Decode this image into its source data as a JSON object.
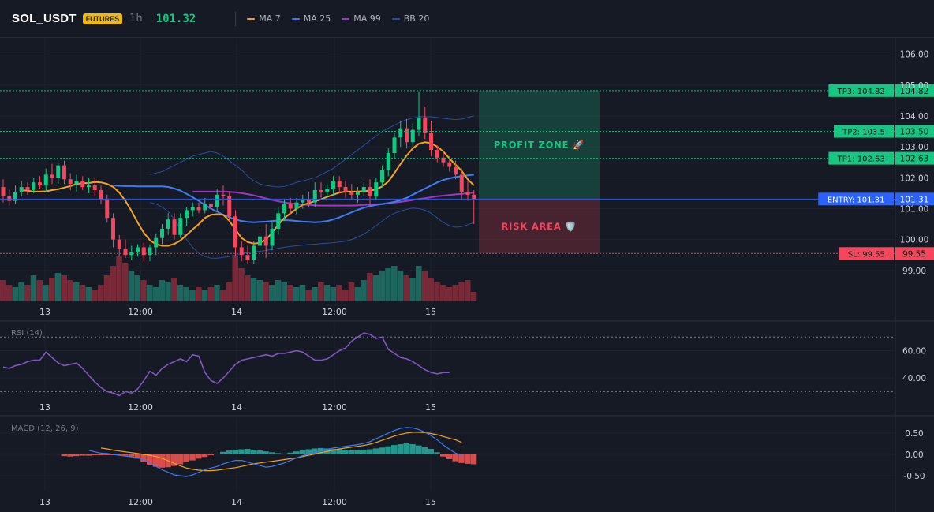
{
  "header": {
    "symbol": "SOL_USDT",
    "badge": "FUTURES",
    "timeframe": "1h",
    "price": "101.32",
    "legend": [
      {
        "name": "MA 7",
        "color": "#f7a21b"
      },
      {
        "name": "MA 25",
        "color": "#3d7bf5"
      },
      {
        "name": "MA 99",
        "color": "#9c36c4"
      },
      {
        "name": "BB 20",
        "color": "#2b4c9e"
      }
    ]
  },
  "chart_data": [
    {
      "type": "candlestick",
      "y_ticks": [
        "106.00",
        "105.00",
        "104.00",
        "103.00",
        "102.00",
        "101.00",
        "100.00",
        "99.00"
      ],
      "x_ticks": [
        "13",
        "12:00",
        "14",
        "12:00",
        "15"
      ],
      "ylim": [
        98.0,
        106.5
      ],
      "levels": [
        {
          "label": "TP3: 104.82",
          "value": "104.82",
          "color": "#16c784",
          "price": 104.82
        },
        {
          "label": "TP2: 103.5",
          "value": "103.50",
          "color": "#16c784",
          "price": 103.5
        },
        {
          "label": "TP1: 102.63",
          "value": "102.63",
          "color": "#16c784",
          "price": 102.63
        },
        {
          "label": "ENTRY: 101.31",
          "value": "101.31",
          "color": "#2962ff",
          "price": 101.31
        },
        {
          "label": "SL: 99.55",
          "value": "99.55",
          "color": "#f6465d",
          "price": 99.55
        }
      ],
      "zones": [
        {
          "label": "PROFIT ZONE 🚀",
          "from": 101.31,
          "to": 104.82,
          "color": "#16c784"
        },
        {
          "label": "RISK AREA 🛡️",
          "from": 99.55,
          "to": 101.31,
          "color": "#f6465d"
        }
      ],
      "candles": [
        [
          101.7,
          101.95,
          101.2,
          101.4
        ],
        [
          101.4,
          101.6,
          101.1,
          101.25
        ],
        [
          101.25,
          101.75,
          101.15,
          101.55
        ],
        [
          101.55,
          101.9,
          101.4,
          101.7
        ],
        [
          101.7,
          101.85,
          101.45,
          101.6
        ],
        [
          101.6,
          102.0,
          101.5,
          101.85
        ],
        [
          101.85,
          102.05,
          101.65,
          101.75
        ],
        [
          101.75,
          102.3,
          101.55,
          102.1
        ],
        [
          102.1,
          102.45,
          101.8,
          102.0
        ],
        [
          102.0,
          102.5,
          101.8,
          102.4
        ],
        [
          102.4,
          102.55,
          101.8,
          101.95
        ],
        [
          101.95,
          102.15,
          101.6,
          101.8
        ],
        [
          101.8,
          102.1,
          101.55,
          101.9
        ],
        [
          101.9,
          102.05,
          101.6,
          101.7
        ],
        [
          101.7,
          102.0,
          101.5,
          101.75
        ],
        [
          101.75,
          102.0,
          101.4,
          101.6
        ],
        [
          101.6,
          101.75,
          101.15,
          101.3
        ],
        [
          101.3,
          101.45,
          100.55,
          100.7
        ],
        [
          100.7,
          100.85,
          99.75,
          100.0
        ],
        [
          100.0,
          100.15,
          99.45,
          99.7
        ],
        [
          99.7,
          100.0,
          99.4,
          99.5
        ],
        [
          99.5,
          99.8,
          99.35,
          99.6
        ],
        [
          99.6,
          99.85,
          99.45,
          99.75
        ],
        [
          99.75,
          99.9,
          99.3,
          99.5
        ],
        [
          99.5,
          99.85,
          99.3,
          99.75
        ],
        [
          99.75,
          100.2,
          99.5,
          100.05
        ],
        [
          100.05,
          100.5,
          99.85,
          100.35
        ],
        [
          100.35,
          100.85,
          100.15,
          100.65
        ],
        [
          100.65,
          100.85,
          100.0,
          100.15
        ],
        [
          100.15,
          100.85,
          100.05,
          100.7
        ],
        [
          100.7,
          101.05,
          100.45,
          100.95
        ],
        [
          100.95,
          101.2,
          100.75,
          101.05
        ],
        [
          101.05,
          101.2,
          100.85,
          100.95
        ],
        [
          100.95,
          101.35,
          100.85,
          101.15
        ],
        [
          101.15,
          101.4,
          100.95,
          101.05
        ],
        [
          101.05,
          101.65,
          100.9,
          101.45
        ],
        [
          101.45,
          101.75,
          101.1,
          101.4
        ],
        [
          101.4,
          101.55,
          100.6,
          100.75
        ],
        [
          100.75,
          100.95,
          99.45,
          99.75
        ],
        [
          99.75,
          99.95,
          99.3,
          99.5
        ],
        [
          99.5,
          99.8,
          99.2,
          99.35
        ],
        [
          99.35,
          99.95,
          99.2,
          99.8
        ],
        [
          99.8,
          100.3,
          99.6,
          100.1
        ],
        [
          100.1,
          100.5,
          99.4,
          99.8
        ],
        [
          99.8,
          100.55,
          99.65,
          100.35
        ],
        [
          100.35,
          101.05,
          100.15,
          100.85
        ],
        [
          100.85,
          101.3,
          100.6,
          101.15
        ],
        [
          101.15,
          101.35,
          100.85,
          101.0
        ],
        [
          101.0,
          101.35,
          100.8,
          101.2
        ],
        [
          101.2,
          101.45,
          101.0,
          101.3
        ],
        [
          101.3,
          101.55,
          101.05,
          101.2
        ],
        [
          101.2,
          101.85,
          101.05,
          101.6
        ],
        [
          101.6,
          101.85,
          101.35,
          101.55
        ],
        [
          101.55,
          101.8,
          101.4,
          101.65
        ],
        [
          101.65,
          102.05,
          101.45,
          101.9
        ],
        [
          101.9,
          102.05,
          101.5,
          101.7
        ],
        [
          101.7,
          101.9,
          101.35,
          101.55
        ],
        [
          101.55,
          101.8,
          101.3,
          101.45
        ],
        [
          101.45,
          101.7,
          101.2,
          101.55
        ],
        [
          101.55,
          101.85,
          101.4,
          101.7
        ],
        [
          101.7,
          101.95,
          101.1,
          101.4
        ],
        [
          101.4,
          102.0,
          101.3,
          101.85
        ],
        [
          101.85,
          102.4,
          101.7,
          102.25
        ],
        [
          102.25,
          102.95,
          102.05,
          102.8
        ],
        [
          102.8,
          103.45,
          102.6,
          103.3
        ],
        [
          103.3,
          103.85,
          103.0,
          103.6
        ],
        [
          103.6,
          103.9,
          102.95,
          103.15
        ],
        [
          103.15,
          103.75,
          103.0,
          103.55
        ],
        [
          103.55,
          104.8,
          103.35,
          103.95
        ],
        [
          103.95,
          104.3,
          103.25,
          103.45
        ],
        [
          103.45,
          103.85,
          102.7,
          102.9
        ],
        [
          102.9,
          103.05,
          102.5,
          102.65
        ],
        [
          102.65,
          102.85,
          102.35,
          102.5
        ],
        [
          102.5,
          102.7,
          102.2,
          102.35
        ],
        [
          102.35,
          102.55,
          101.95,
          102.1
        ],
        [
          102.1,
          102.3,
          101.3,
          101.55
        ],
        [
          101.55,
          101.9,
          101.25,
          101.45
        ],
        [
          101.45,
          101.6,
          100.5,
          101.32
        ]
      ],
      "ma7": [
        101.6,
        101.58,
        101.55,
        101.55,
        101.56,
        101.6,
        101.63,
        101.68,
        101.73,
        101.8,
        101.82,
        101.83,
        101.86,
        101.85,
        101.8,
        101.7,
        101.52,
        101.25,
        100.92,
        100.55,
        100.22,
        99.98,
        99.85,
        99.8,
        99.8,
        99.86,
        99.97,
        100.15,
        100.33,
        100.5,
        100.7,
        100.8,
        100.82,
        100.8,
        100.6,
        100.32,
        100.05,
        99.92,
        99.87,
        99.9,
        100.0,
        100.22,
        100.48,
        100.7,
        100.85,
        101.0,
        101.12,
        101.18,
        101.24,
        101.3,
        101.38,
        101.45,
        101.52,
        101.55,
        101.55,
        101.55,
        101.57,
        101.58,
        101.62,
        101.72,
        101.88,
        102.15,
        102.45,
        102.72,
        102.95,
        103.1,
        103.15,
        103.12,
        103.0,
        102.85,
        102.62,
        102.42,
        102.22,
        101.95,
        101.75
      ],
      "ma25": [
        101.75,
        101.74,
        101.73,
        101.73,
        101.72,
        101.72,
        101.72,
        101.72,
        101.72,
        101.7,
        101.65,
        101.58,
        101.48,
        101.37,
        101.25,
        101.12,
        101.0,
        100.9,
        100.8,
        100.72,
        100.65,
        100.6,
        100.57,
        100.56,
        100.57,
        100.58,
        100.6,
        100.62,
        100.63,
        100.62,
        100.6,
        100.58,
        100.57,
        100.56,
        100.57,
        100.6,
        100.65,
        100.72,
        100.8,
        100.88,
        100.96,
        101.03,
        101.08,
        101.12,
        101.15,
        101.18,
        101.22,
        101.28,
        101.35,
        101.45,
        101.55,
        101.65,
        101.75,
        101.85,
        101.93,
        101.98,
        102.02,
        102.05,
        102.08,
        102.1
      ],
      "ma99": [
        101.55,
        101.55,
        101.55,
        101.55,
        101.55,
        101.55,
        101.54,
        101.53,
        101.5,
        101.47,
        101.43,
        101.38,
        101.33,
        101.28,
        101.24,
        101.2,
        101.17,
        101.15,
        101.13,
        101.12,
        101.11,
        101.1,
        101.1,
        101.1,
        101.1,
        101.1,
        101.1,
        101.11,
        101.12,
        101.13,
        101.14,
        101.15,
        101.17,
        101.2,
        101.22,
        101.25,
        101.28,
        101.31,
        101.34,
        101.37,
        101.4,
        101.42,
        101.44,
        101.46,
        101.48,
        101.5,
        101.52
      ],
      "bb_upper": [
        102.1,
        102.15,
        102.2,
        102.3,
        102.4,
        102.5,
        102.6,
        102.7,
        102.75,
        102.8,
        102.85,
        102.8,
        102.7,
        102.55,
        102.4,
        102.25,
        102.05,
        101.9,
        101.8,
        101.75,
        101.72,
        101.7,
        101.72,
        101.78,
        101.85,
        101.9,
        101.95,
        102.0,
        102.1,
        102.2,
        102.3,
        102.45,
        102.6,
        102.75,
        102.9,
        103.05,
        103.2,
        103.35,
        103.5,
        103.6,
        103.7,
        103.8,
        103.88,
        103.93,
        103.97,
        103.98,
        103.97,
        103.95,
        103.92,
        103.9,
        103.88,
        103.9,
        103.95,
        104.0
      ],
      "bb_lower": [
        101.2,
        101.15,
        101.05,
        100.9,
        100.65,
        100.35,
        100.0,
        99.75,
        99.55,
        99.45,
        99.4,
        99.4,
        99.42,
        99.45,
        99.5,
        99.55,
        99.58,
        99.6,
        99.62,
        99.65,
        99.68,
        99.72,
        99.75,
        99.78,
        99.8,
        99.82,
        99.84,
        99.85,
        99.87,
        99.88,
        99.9,
        99.92,
        99.95,
        100.0,
        100.08,
        100.18,
        100.3,
        100.45,
        100.6,
        100.75,
        100.85,
        100.92,
        100.98,
        101.02,
        101.0,
        100.95,
        100.85,
        100.7,
        100.55,
        100.45,
        100.4,
        100.42,
        100.48,
        100.55
      ],
      "volume": [
        0.45,
        0.35,
        0.3,
        0.4,
        0.35,
        0.55,
        0.45,
        0.35,
        0.5,
        0.6,
        0.55,
        0.45,
        0.4,
        0.35,
        0.3,
        0.25,
        0.35,
        0.55,
        0.75,
        0.95,
        0.8,
        0.65,
        0.55,
        0.45,
        0.35,
        0.3,
        0.45,
        0.4,
        0.5,
        0.35,
        0.3,
        0.25,
        0.3,
        0.25,
        0.3,
        0.35,
        0.25,
        0.4,
        0.95,
        0.7,
        0.55,
        0.5,
        0.45,
        0.4,
        0.35,
        0.45,
        0.4,
        0.35,
        0.3,
        0.35,
        0.25,
        0.3,
        0.4,
        0.35,
        0.3,
        0.35,
        0.25,
        0.4,
        0.3,
        0.45,
        0.6,
        0.55,
        0.65,
        0.7,
        0.75,
        0.65,
        0.55,
        0.5,
        0.75,
        0.65,
        0.5,
        0.4,
        0.35,
        0.3,
        0.35,
        0.4,
        0.45,
        0.2
      ]
    },
    {
      "type": "line",
      "title": "RSI (14)",
      "y_ticks": [
        "60.00",
        "40.00"
      ],
      "x_ticks": [
        "13",
        "12:00",
        "14",
        "12:00",
        "15"
      ],
      "ylim": [
        25,
        80
      ],
      "bands": [
        70,
        30
      ],
      "color": "#7e57c2",
      "values": [
        48,
        47,
        49,
        50,
        52,
        53,
        53,
        59,
        55,
        51,
        49,
        50,
        51,
        47,
        42,
        37,
        33,
        30,
        29,
        27,
        30,
        29,
        32,
        38,
        45,
        42,
        47,
        50,
        52,
        54,
        52,
        57,
        56,
        44,
        38,
        36,
        40,
        45,
        50,
        53,
        54,
        55,
        56,
        57,
        56,
        58,
        58,
        59,
        60,
        59,
        56,
        53,
        53,
        54,
        57,
        60,
        62,
        67,
        70,
        73,
        72,
        69,
        70,
        61,
        58,
        55,
        54,
        52,
        49,
        46,
        44,
        43,
        44,
        44
      ]
    },
    {
      "type": "bar",
      "title": "MACD (12, 26, 9)",
      "y_ticks": [
        "0.50",
        "0.00",
        "-0.50"
      ],
      "x_ticks": [
        "13",
        "12:00",
        "14",
        "12:00",
        "15"
      ],
      "ylim": [
        -0.85,
        0.85
      ],
      "histogram": [
        -0.04,
        -0.05,
        -0.04,
        -0.03,
        -0.03,
        -0.02,
        -0.02,
        -0.01,
        -0.01,
        -0.02,
        -0.03,
        -0.05,
        -0.1,
        -0.17,
        -0.24,
        -0.29,
        -0.31,
        -0.3,
        -0.27,
        -0.23,
        -0.18,
        -0.14,
        -0.1,
        -0.06,
        -0.02,
        0.02,
        0.06,
        0.09,
        0.11,
        0.12,
        0.13,
        0.11,
        0.09,
        0.07,
        0.05,
        0.03,
        0.02,
        0.04,
        0.07,
        0.1,
        0.12,
        0.14,
        0.15,
        0.14,
        0.13,
        0.12,
        0.11,
        0.1,
        0.1,
        0.11,
        0.12,
        0.14,
        0.16,
        0.19,
        0.22,
        0.24,
        0.26,
        0.24,
        0.21,
        0.17,
        0.13,
        0.05,
        -0.05,
        -0.11,
        -0.16,
        -0.2,
        -0.22,
        -0.23
      ],
      "macd": [
        0.1,
        0.06,
        0.03,
        0.02,
        0.0,
        -0.02,
        -0.04,
        -0.06,
        -0.08,
        -0.12,
        -0.2,
        -0.28,
        -0.36,
        -0.42,
        -0.48,
        -0.5,
        -0.52,
        -0.48,
        -0.42,
        -0.36,
        -0.32,
        -0.28,
        -0.22,
        -0.18,
        -0.14,
        -0.14,
        -0.18,
        -0.22,
        -0.26,
        -0.3,
        -0.28,
        -0.24,
        -0.2,
        -0.14,
        -0.08,
        -0.03,
        0.01,
        0.05,
        0.09,
        0.12,
        0.15,
        0.17,
        0.19,
        0.21,
        0.23,
        0.26,
        0.3,
        0.37,
        0.43,
        0.5,
        0.56,
        0.61,
        0.63,
        0.62,
        0.58,
        0.52,
        0.44,
        0.34,
        0.22,
        0.12,
        0.03,
        -0.02
      ],
      "signal": [
        0.15,
        0.13,
        0.1,
        0.08,
        0.06,
        0.04,
        0.02,
        0.0,
        -0.02,
        -0.05,
        -0.09,
        -0.15,
        -0.21,
        -0.27,
        -0.32,
        -0.35,
        -0.37,
        -0.38,
        -0.38,
        -0.37,
        -0.35,
        -0.33,
        -0.31,
        -0.28,
        -0.25,
        -0.22,
        -0.2,
        -0.18,
        -0.16,
        -0.14,
        -0.12,
        -0.1,
        -0.08,
        -0.05,
        -0.02,
        0.01,
        0.04,
        0.07,
        0.1,
        0.13,
        0.15,
        0.17,
        0.19,
        0.21,
        0.24,
        0.28,
        0.33,
        0.38,
        0.43,
        0.47,
        0.5,
        0.52,
        0.52,
        0.51,
        0.49,
        0.46,
        0.42,
        0.38,
        0.34,
        0.28
      ]
    }
  ]
}
